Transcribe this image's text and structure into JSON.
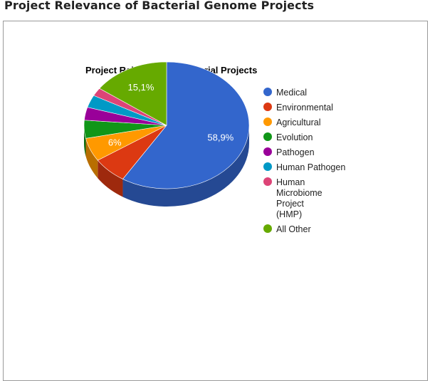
{
  "page": {
    "title": "Project Relevance of Bacterial Genome Projects"
  },
  "chart_data": {
    "type": "pie",
    "style": "3d",
    "title": "Project Relevance of Bacterial Projects",
    "legend_position": "right",
    "slices": [
      {
        "label": "Medical",
        "value": 58.9,
        "color": "#3366cc",
        "data_label": "58,9%"
      },
      {
        "label": "Environmental",
        "value": 6.8,
        "color": "#dc3912",
        "data_label": ""
      },
      {
        "label": "Agricultural",
        "value": 6.0,
        "color": "#ff9900",
        "data_label": "6%"
      },
      {
        "label": "Evolution",
        "value": 4.6,
        "color": "#109618",
        "data_label": ""
      },
      {
        "label": "Pathogen",
        "value": 3.3,
        "color": "#990099",
        "data_label": ""
      },
      {
        "label": "Human Pathogen",
        "value": 3.2,
        "color": "#0099c6",
        "data_label": ""
      },
      {
        "label": "Human Microbiome Project (HMP)",
        "value": 2.1,
        "color": "#dd4477",
        "data_label": ""
      },
      {
        "label": "All Other",
        "value": 15.1,
        "color": "#66aa00",
        "data_label": "15,1%"
      }
    ]
  }
}
